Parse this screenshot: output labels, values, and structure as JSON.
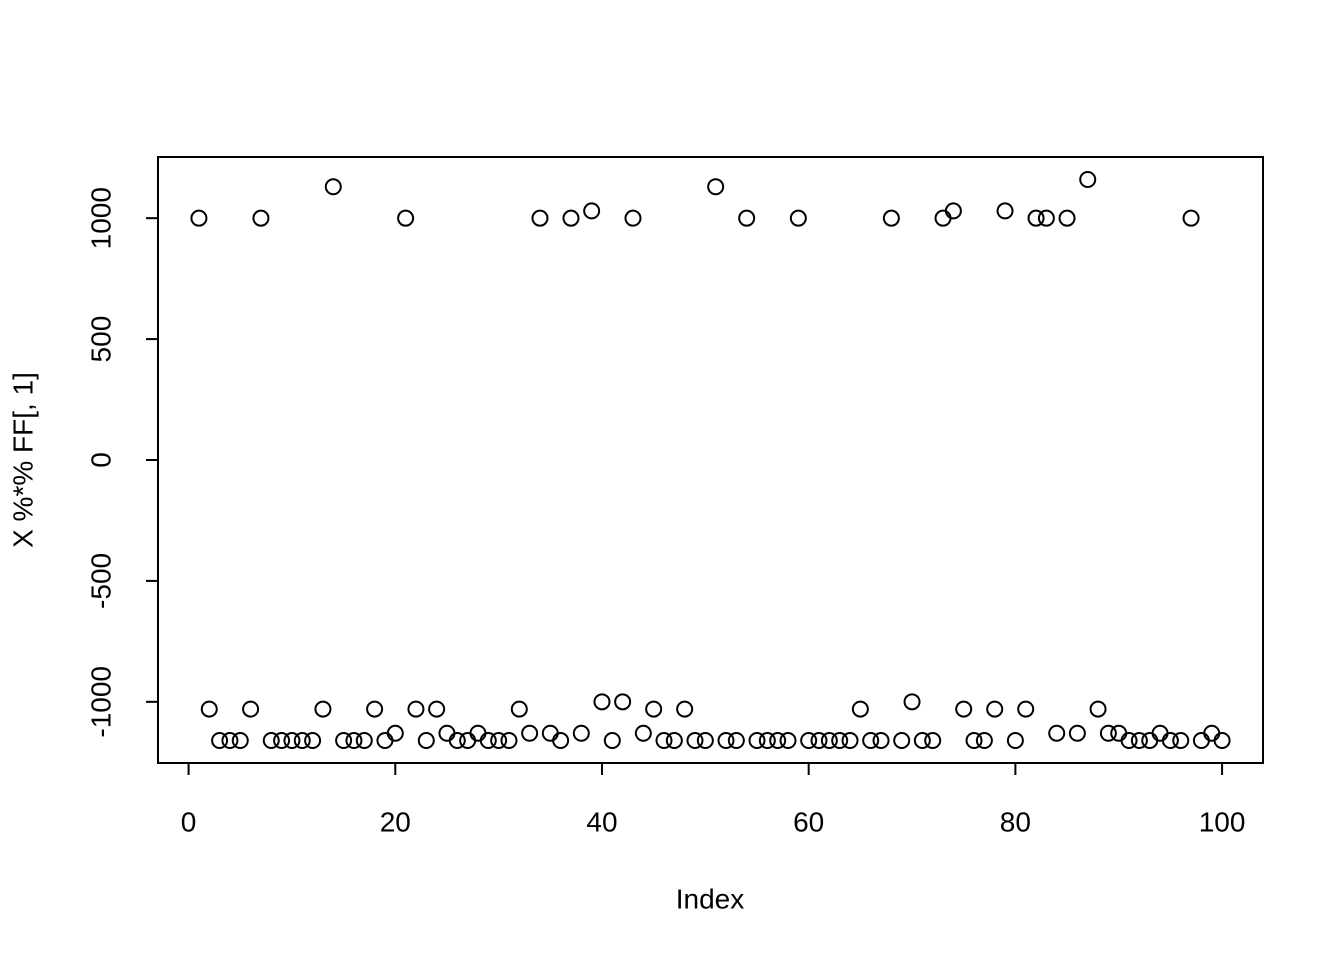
{
  "chart_data": {
    "type": "scatter",
    "x_label": "Index",
    "y_label": "X %*% FF[, 1]",
    "x": [
      1,
      2,
      3,
      4,
      5,
      6,
      7,
      8,
      9,
      10,
      11,
      12,
      13,
      14,
      15,
      16,
      17,
      18,
      19,
      20,
      21,
      22,
      23,
      24,
      25,
      26,
      27,
      28,
      29,
      30,
      31,
      32,
      33,
      34,
      35,
      36,
      37,
      38,
      39,
      40,
      41,
      42,
      43,
      44,
      45,
      46,
      47,
      48,
      49,
      50,
      51,
      52,
      53,
      54,
      55,
      56,
      57,
      58,
      59,
      60,
      61,
      62,
      63,
      64,
      65,
      66,
      67,
      68,
      69,
      70,
      71,
      72,
      73,
      74,
      75,
      76,
      77,
      78,
      79,
      80,
      81,
      82,
      83,
      84,
      85,
      86,
      87,
      88,
      89,
      90,
      91,
      92,
      93,
      94,
      95,
      96,
      97,
      98,
      99,
      100
    ],
    "values": [
      1000,
      -1030,
      -1160,
      -1160,
      -1160,
      -1030,
      1000,
      -1160,
      -1160,
      -1160,
      -1160,
      -1160,
      -1030,
      1130,
      -1160,
      -1160,
      -1160,
      -1030,
      -1160,
      -1130,
      1000,
      -1030,
      -1160,
      -1030,
      -1130,
      -1160,
      -1160,
      -1130,
      -1160,
      -1160,
      -1160,
      -1030,
      -1130,
      1000,
      -1130,
      -1160,
      1000,
      -1130,
      1030,
      -1000,
      -1160,
      -1000,
      1000,
      -1130,
      -1030,
      -1160,
      -1160,
      -1030,
      -1160,
      -1160,
      1130,
      -1160,
      -1160,
      1000,
      -1160,
      -1160,
      -1160,
      -1160,
      1000,
      -1160,
      -1160,
      -1160,
      -1160,
      -1160,
      -1030,
      -1160,
      -1160,
      1000,
      -1160,
      -1000,
      -1160,
      -1160,
      1000,
      1030,
      -1030,
      -1160,
      -1160,
      -1030,
      1030,
      -1160,
      -1030,
      1000,
      1000,
      -1130,
      1000,
      -1130,
      1160,
      -1030,
      -1130,
      -1130,
      -1160,
      -1160,
      -1160,
      -1130,
      -1160,
      -1160,
      1000,
      -1160,
      -1130,
      -1160
    ],
    "xlim": [
      -2.96,
      103.96
    ],
    "ylim": [
      -1253,
      1253
    ],
    "xticks": [
      0,
      20,
      40,
      60,
      80,
      100
    ],
    "yticks": [
      -1000,
      -500,
      0,
      500,
      1000
    ]
  }
}
